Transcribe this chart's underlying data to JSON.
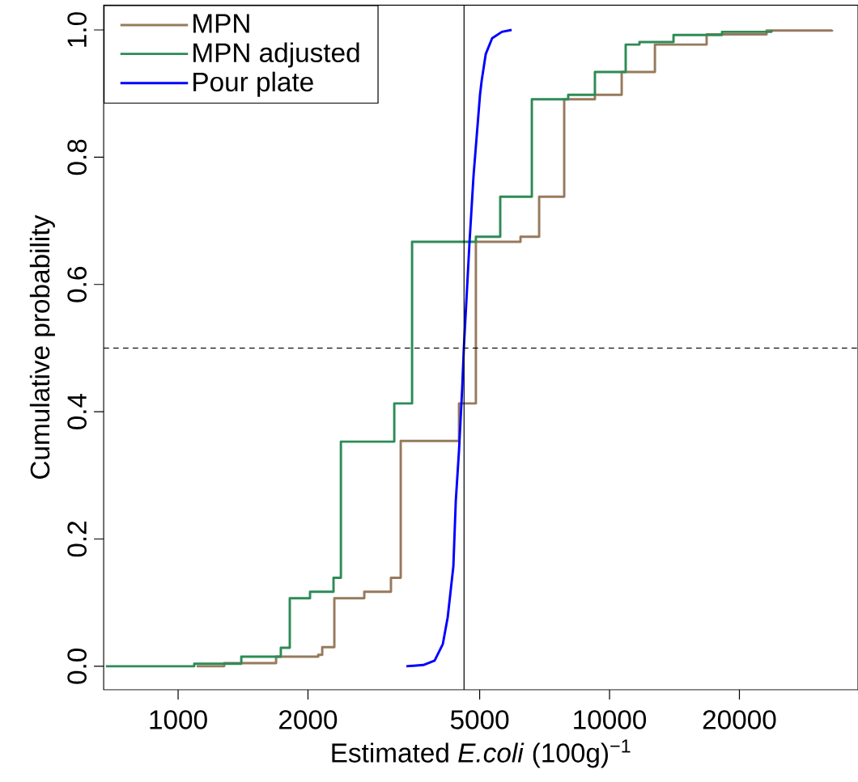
{
  "chart_data": {
    "type": "step",
    "xlabel": "Estimated *E.coli* (100g)$^{−1}$",
    "ylabel": "Cumulative probability",
    "log": "x",
    "xlim": [
      672,
      37670
    ],
    "ylim": [
      -0.037,
      1.039
    ],
    "xticks": [
      1000,
      2000,
      5000,
      10000,
      20000
    ],
    "yticks": [
      {
        "value": 0,
        "label": "0.0"
      },
      {
        "value": 0.2,
        "label": "0.2"
      },
      {
        "value": 0.4,
        "label": "0.4"
      },
      {
        "value": 0.6,
        "label": "0.6"
      },
      {
        "value": 0.8,
        "label": "0.8"
      },
      {
        "value": 1,
        "label": "1.0"
      }
    ],
    "legend": "top left",
    "ref_lines": [
      {
        "axis": "x",
        "value": 4600,
        "color": "#000000",
        "line_style": "solid"
      },
      {
        "axis": "y",
        "value": 0.5,
        "color": "#000000",
        "line_style": "dashed"
      }
    ],
    "series": [
      {
        "name": "MPN",
        "color": "#967a5c",
        "x": [
          1104,
          1279,
          1687,
          2112,
          2158,
          2302,
          2701,
          3114,
          3281,
          4478,
          4900,
          6218,
          6868,
          7852,
          9249,
          10670,
          12740,
          16790,
          23120,
          32810
        ],
        "values": [
          0,
          0.005,
          0.015,
          0.018,
          0.03,
          0.107,
          0.117,
          0.139,
          0.354,
          0.413,
          0.667,
          0.675,
          0.738,
          0.891,
          0.898,
          0.934,
          0.977,
          0.993,
          0.999,
          1.0
        ]
      },
      {
        "name": "MPN adjusted",
        "color": "#2e8b57",
        "x": [
          680,
          1090,
          1401,
          1730,
          1815,
          2022,
          2292,
          2384,
          3170,
          3486,
          4900,
          5580,
          6606,
          8020,
          9249,
          10900,
          11730,
          14070,
          18230,
          23730
        ],
        "values": [
          0,
          0.004,
          0.015,
          0.029,
          0.107,
          0.117,
          0.139,
          0.353,
          0.413,
          0.667,
          0.675,
          0.738,
          0.891,
          0.898,
          0.934,
          0.977,
          0.981,
          0.992,
          0.997,
          1.0
        ]
      },
      {
        "name": "Pour plate",
        "color": "#0000ff",
        "type": "line",
        "x": [
          3381,
          3703,
          3932,
          4108,
          4216,
          4345,
          4401,
          4478,
          4555,
          4595,
          4736,
          4839,
          5009,
          5053,
          5164,
          5345,
          5630,
          5930
        ],
        "values": [
          0,
          0.002,
          0.009,
          0.035,
          0.077,
          0.157,
          0.259,
          0.339,
          0.437,
          0.5,
          0.666,
          0.771,
          0.898,
          0.92,
          0.962,
          0.987,
          0.997,
          1.0
        ]
      }
    ]
  }
}
